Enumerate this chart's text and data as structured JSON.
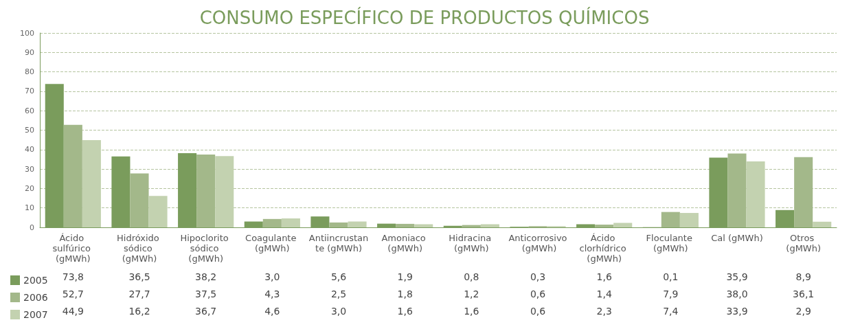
{
  "chart_data": {
    "type": "bar",
    "title": "CONSUMO ESPECÍFICO DE PRODUCTOS QUÍMICOS",
    "categories": [
      "Ácido sulfúrico (gMWh)",
      "Hidróxido sódico (gMWh)",
      "Hipoclorito sódico (gMWh)",
      "Coagulante (gMWh)",
      "Antiincrustante (gMWh)",
      "Amoniaco (gMWh)",
      "Hidracina (gMWh)",
      "Anticorrosivo (gMWh)",
      "Ácido clorhídrico (gMWh)",
      "Floculante (gMWh)",
      "Cal (gMWh)",
      "Otros (gMWh)"
    ],
    "series": [
      {
        "name": "2005",
        "color": "#7a9c5c",
        "values": [
          73.8,
          36.5,
          38.2,
          3.0,
          5.6,
          1.9,
          0.8,
          0.3,
          1.6,
          0.1,
          35.9,
          8.9
        ],
        "value_labels": [
          "73,8",
          "36,5",
          "38,2",
          "3,0",
          "5,6",
          "1,9",
          "0,8",
          "0,3",
          "1,6",
          "0,1",
          "35,9",
          "8,9"
        ]
      },
      {
        "name": "2006",
        "color": "#a3b88a",
        "values": [
          52.7,
          27.7,
          37.5,
          4.3,
          2.5,
          1.8,
          1.2,
          0.6,
          1.4,
          7.9,
          38.0,
          36.1
        ],
        "value_labels": [
          "52,7",
          "27,7",
          "37,5",
          "4,3",
          "2,5",
          "1,8",
          "1,2",
          "0,6",
          "1,4",
          "7,9",
          "38,0",
          "36,1"
        ]
      },
      {
        "name": "2007",
        "color": "#c3d2b0",
        "values": [
          44.9,
          16.2,
          36.7,
          4.6,
          3.0,
          1.6,
          1.6,
          0.6,
          2.3,
          7.4,
          33.9,
          2.9
        ],
        "value_labels": [
          "44,9",
          "16,2",
          "36,7",
          "4,6",
          "3,0",
          "1,6",
          "1,6",
          "0,6",
          "2,3",
          "7,4",
          "33,9",
          "2,9"
        ]
      }
    ],
    "ylim": [
      0,
      100
    ],
    "yticks": [
      0,
      10,
      20,
      30,
      40,
      50,
      60,
      70,
      80,
      90,
      100
    ],
    "grid": "y",
    "legend": "bottom left"
  }
}
